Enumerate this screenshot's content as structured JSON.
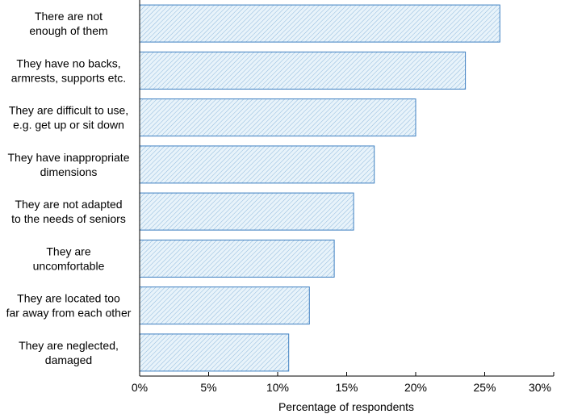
{
  "chart_data": {
    "type": "bar",
    "orientation": "horizontal",
    "title": "",
    "xlabel": "Percentage of respondents",
    "ylabel": "",
    "xlim": [
      0,
      30
    ],
    "ticks": [
      0,
      5,
      10,
      15,
      20,
      25,
      30
    ],
    "tick_labels": [
      "0%",
      "5%",
      "10%",
      "15%",
      "20%",
      "25%",
      "30%"
    ],
    "grid": false,
    "categories": [
      [
        "There are not",
        "enough of them"
      ],
      [
        "They have no backs,",
        "armrests, supports etc."
      ],
      [
        "They are difficult to use,",
        "e.g. get up or sit down"
      ],
      [
        "They have inappropriate",
        "dimensions"
      ],
      [
        "They are not adapted",
        "to the needs of seniors"
      ],
      [
        "They are",
        "uncomfortable"
      ],
      [
        "They are located too",
        "far away from each other"
      ],
      [
        "They are neglected,",
        "damaged"
      ]
    ],
    "values": [
      26.1,
      23.6,
      20.0,
      17.0,
      15.5,
      14.1,
      12.3,
      10.8
    ],
    "colors": {
      "bar_fill": "#e8f3fa",
      "bar_stroke": "#3d7fc1",
      "hatch": "#8fb9dd",
      "axis": "#000000"
    }
  }
}
